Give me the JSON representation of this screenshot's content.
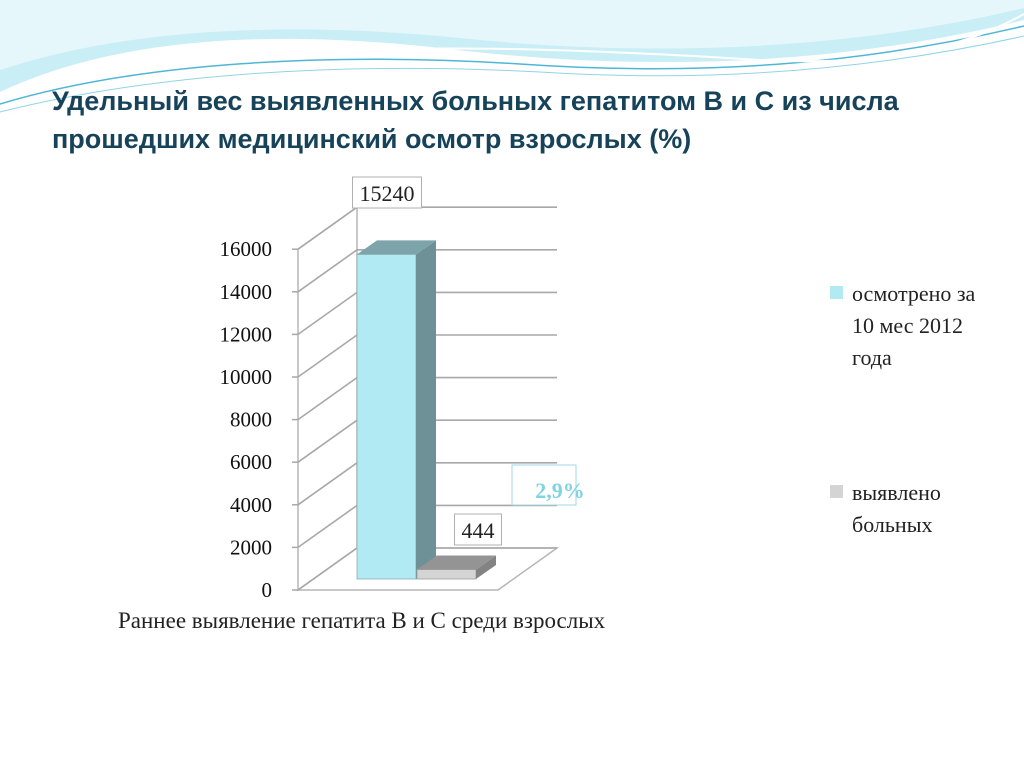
{
  "title": "Удельный вес выявленных больных гепатитом В и С из числа прошедших медицинский осмотр взрослых (%)",
  "chart_data": {
    "type": "bar",
    "categories": [
      "Раннее выявление гепатита В и С среди взрослых"
    ],
    "series": [
      {
        "name": "осмотрено за 10 мес 2012 года",
        "values": [
          15240
        ],
        "color": "#b2eaf3"
      },
      {
        "name": "выявлено больных",
        "values": [
          444
        ],
        "color": "#d4d4d4"
      }
    ],
    "data_labels": [
      "15240",
      "444"
    ],
    "annotation": "2,9%",
    "xlabel": "Раннее выявление гепатита В и С среди взрослых",
    "ylim": [
      0,
      16000
    ],
    "yticks": [
      0,
      2000,
      4000,
      6000,
      8000,
      10000,
      12000,
      14000,
      16000
    ],
    "grid": true,
    "legend_position": "right",
    "style": "3d-column"
  },
  "colors": {
    "title": "#17435a",
    "wave_light": "#c9eef6",
    "wave_accent": "#4fb7d6",
    "annotation": "#7fd3e3"
  }
}
